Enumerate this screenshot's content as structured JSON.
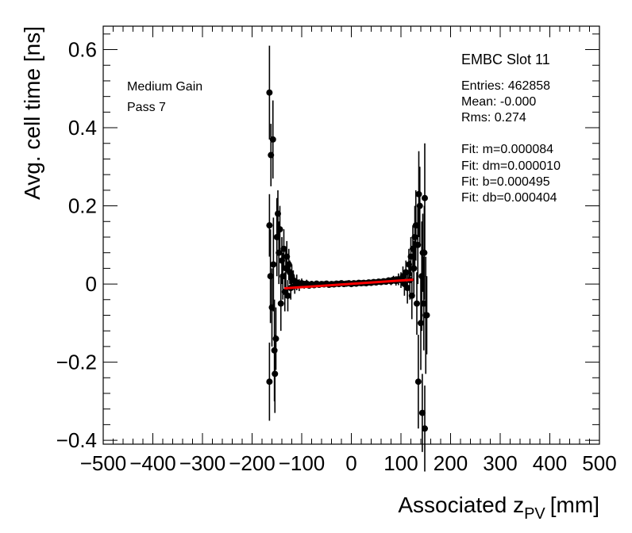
{
  "chart_data": {
    "type": "scatter",
    "title": "EMBC Slot 11",
    "xlabel": "Associated z",
    "xlabel_subscript": "PV",
    "xlabel_unit": "[mm]",
    "ylabel": "Avg. cell time [ns]",
    "xlim": [
      -500,
      500
    ],
    "ylim": [
      -0.41,
      0.66
    ],
    "x_ticks": [
      -500,
      -400,
      -300,
      -200,
      -100,
      0,
      100,
      200,
      300,
      400,
      500
    ],
    "x_tick_labels": [
      "−500",
      "−400",
      "−300",
      "−200",
      "−100",
      "0",
      "100",
      "200",
      "300",
      "400",
      "500"
    ],
    "y_ticks": [
      -0.4,
      -0.2,
      0,
      0.2,
      0.4,
      0.6
    ],
    "y_tick_labels": [
      "−0.4",
      "−0.2",
      "0",
      "0.2",
      "0.4",
      "0.6"
    ],
    "annotations": [
      "Medium Gain",
      "Pass 7"
    ],
    "stats": {
      "entries": "Entries: 462858",
      "mean": "Mean: -0.000",
      "rms": "Rms: 0.274",
      "fit_m": "Fit: m=0.000084",
      "fit_dm": "Fit: dm=0.000010",
      "fit_b": "Fit: b=0.000495",
      "fit_db": "Fit: db=0.000404"
    },
    "fit_line": {
      "color": "#ff0000",
      "x": [
        -135,
        125
      ],
      "y": [
        -0.011,
        0.011
      ]
    },
    "points": [
      {
        "x": -165,
        "y": 0.49,
        "err": 0.12
      },
      {
        "x": -162,
        "y": 0.33,
        "err": 0.08
      },
      {
        "x": -158,
        "y": 0.37,
        "err": 0.1
      },
      {
        "x": -165,
        "y": 0.15,
        "err": 0.08
      },
      {
        "x": -165,
        "y": -0.25,
        "err": 0.1
      },
      {
        "x": -163,
        "y": 0.02,
        "err": 0.12
      },
      {
        "x": -160,
        "y": -0.06,
        "err": 0.1
      },
      {
        "x": -157,
        "y": 0.05,
        "err": 0.12
      },
      {
        "x": -155,
        "y": -0.17,
        "err": 0.13
      },
      {
        "x": -154,
        "y": -0.23,
        "err": 0.1
      },
      {
        "x": -152,
        "y": -0.14,
        "err": 0.08
      },
      {
        "x": -150,
        "y": 0.12,
        "err": 0.1
      },
      {
        "x": -148,
        "y": 0.18,
        "err": 0.06
      },
      {
        "x": -146,
        "y": 0.08,
        "err": 0.08
      },
      {
        "x": -144,
        "y": 0.14,
        "err": 0.06
      },
      {
        "x": -142,
        "y": -0.05,
        "err": 0.07
      },
      {
        "x": -140,
        "y": 0.06,
        "err": 0.06
      },
      {
        "x": -138,
        "y": 0.02,
        "err": 0.06
      },
      {
        "x": -136,
        "y": 0.09,
        "err": 0.05
      },
      {
        "x": -134,
        "y": -0.02,
        "err": 0.05
      },
      {
        "x": -132,
        "y": 0.04,
        "err": 0.05
      },
      {
        "x": -130,
        "y": 0.07,
        "err": 0.04
      },
      {
        "x": -128,
        "y": -0.03,
        "err": 0.04
      },
      {
        "x": -126,
        "y": 0.05,
        "err": 0.04
      },
      {
        "x": -124,
        "y": 0.03,
        "err": 0.03
      },
      {
        "x": -122,
        "y": -0.01,
        "err": 0.03
      },
      {
        "x": -120,
        "y": 0.02,
        "err": 0.03
      },
      {
        "x": -117,
        "y": 0.01,
        "err": 0.025
      },
      {
        "x": -114,
        "y": -0.005,
        "err": 0.02
      },
      {
        "x": -110,
        "y": 0.004,
        "err": 0.02
      },
      {
        "x": -105,
        "y": -0.003,
        "err": 0.015
      },
      {
        "x": -100,
        "y": 0.002,
        "err": 0.012
      },
      {
        "x": -95,
        "y": -0.002,
        "err": 0.01
      },
      {
        "x": -90,
        "y": 0.001,
        "err": 0.01
      },
      {
        "x": -85,
        "y": -0.004,
        "err": 0.008
      },
      {
        "x": -80,
        "y": 0.0,
        "err": 0.008
      },
      {
        "x": -75,
        "y": -0.003,
        "err": 0.006
      },
      {
        "x": -70,
        "y": 0.001,
        "err": 0.006
      },
      {
        "x": -65,
        "y": -0.002,
        "err": 0.005
      },
      {
        "x": -60,
        "y": 0.0,
        "err": 0.005
      },
      {
        "x": -55,
        "y": -0.001,
        "err": 0.004
      },
      {
        "x": -50,
        "y": 0.001,
        "err": 0.004
      },
      {
        "x": -45,
        "y": -0.002,
        "err": 0.004
      },
      {
        "x": -40,
        "y": 0.0,
        "err": 0.004
      },
      {
        "x": -35,
        "y": -0.001,
        "err": 0.004
      },
      {
        "x": -30,
        "y": 0.001,
        "err": 0.004
      },
      {
        "x": -25,
        "y": 0.0,
        "err": 0.004
      },
      {
        "x": -20,
        "y": 0.002,
        "err": 0.004
      },
      {
        "x": -15,
        "y": 0.0,
        "err": 0.004
      },
      {
        "x": -10,
        "y": 0.001,
        "err": 0.004
      },
      {
        "x": -5,
        "y": 0.002,
        "err": 0.004
      },
      {
        "x": 0,
        "y": 0.0,
        "err": 0.004
      },
      {
        "x": 5,
        "y": 0.002,
        "err": 0.004
      },
      {
        "x": 10,
        "y": 0.001,
        "err": 0.004
      },
      {
        "x": 15,
        "y": 0.003,
        "err": 0.004
      },
      {
        "x": 20,
        "y": 0.002,
        "err": 0.004
      },
      {
        "x": 25,
        "y": 0.003,
        "err": 0.004
      },
      {
        "x": 30,
        "y": 0.002,
        "err": 0.004
      },
      {
        "x": 35,
        "y": 0.004,
        "err": 0.004
      },
      {
        "x": 40,
        "y": 0.003,
        "err": 0.004
      },
      {
        "x": 45,
        "y": 0.005,
        "err": 0.005
      },
      {
        "x": 50,
        "y": 0.004,
        "err": 0.005
      },
      {
        "x": 55,
        "y": 0.006,
        "err": 0.005
      },
      {
        "x": 60,
        "y": 0.005,
        "err": 0.006
      },
      {
        "x": 65,
        "y": 0.007,
        "err": 0.006
      },
      {
        "x": 70,
        "y": 0.006,
        "err": 0.008
      },
      {
        "x": 75,
        "y": 0.009,
        "err": 0.008
      },
      {
        "x": 80,
        "y": 0.007,
        "err": 0.01
      },
      {
        "x": 85,
        "y": 0.011,
        "err": 0.01
      },
      {
        "x": 90,
        "y": 0.008,
        "err": 0.012
      },
      {
        "x": 95,
        "y": 0.012,
        "err": 0.015
      },
      {
        "x": 100,
        "y": 0.01,
        "err": 0.02
      },
      {
        "x": 104,
        "y": 0.02,
        "err": 0.025
      },
      {
        "x": 107,
        "y": 0.0,
        "err": 0.03
      },
      {
        "x": 110,
        "y": 0.03,
        "err": 0.03
      },
      {
        "x": 113,
        "y": -0.01,
        "err": 0.04
      },
      {
        "x": 116,
        "y": 0.05,
        "err": 0.04
      },
      {
        "x": 118,
        "y": 0.01,
        "err": 0.05
      },
      {
        "x": 120,
        "y": 0.07,
        "err": 0.05
      },
      {
        "x": 122,
        "y": -0.03,
        "err": 0.06
      },
      {
        "x": 124,
        "y": 0.09,
        "err": 0.06
      },
      {
        "x": 126,
        "y": 0.04,
        "err": 0.07
      },
      {
        "x": 128,
        "y": 0.12,
        "err": 0.08
      },
      {
        "x": 130,
        "y": 0.15,
        "err": 0.09
      },
      {
        "x": 132,
        "y": -0.05,
        "err": 0.08
      },
      {
        "x": 134,
        "y": 0.1,
        "err": 0.1
      },
      {
        "x": 136,
        "y": 0.23,
        "err": 0.11
      },
      {
        "x": 138,
        "y": 0.2,
        "err": 0.1
      },
      {
        "x": 140,
        "y": -0.1,
        "err": 0.12
      },
      {
        "x": 142,
        "y": 0.02,
        "err": 0.14
      },
      {
        "x": 144,
        "y": 0.08,
        "err": 0.1
      },
      {
        "x": 146,
        "y": -0.05,
        "err": 0.12
      },
      {
        "x": 148,
        "y": 0.22,
        "err": 0.14
      },
      {
        "x": 150,
        "y": -0.08,
        "err": 0.15
      },
      {
        "x": 135,
        "y": -0.25,
        "err": 0.12
      },
      {
        "x": 143,
        "y": -0.33,
        "err": 0.1
      },
      {
        "x": 148,
        "y": -0.37,
        "err": 0.11
      },
      {
        "x": 147,
        "y": 0.08,
        "err": 0.12
      },
      {
        "x": 152,
        "y": -0.08,
        "err": 0.1
      }
    ]
  }
}
